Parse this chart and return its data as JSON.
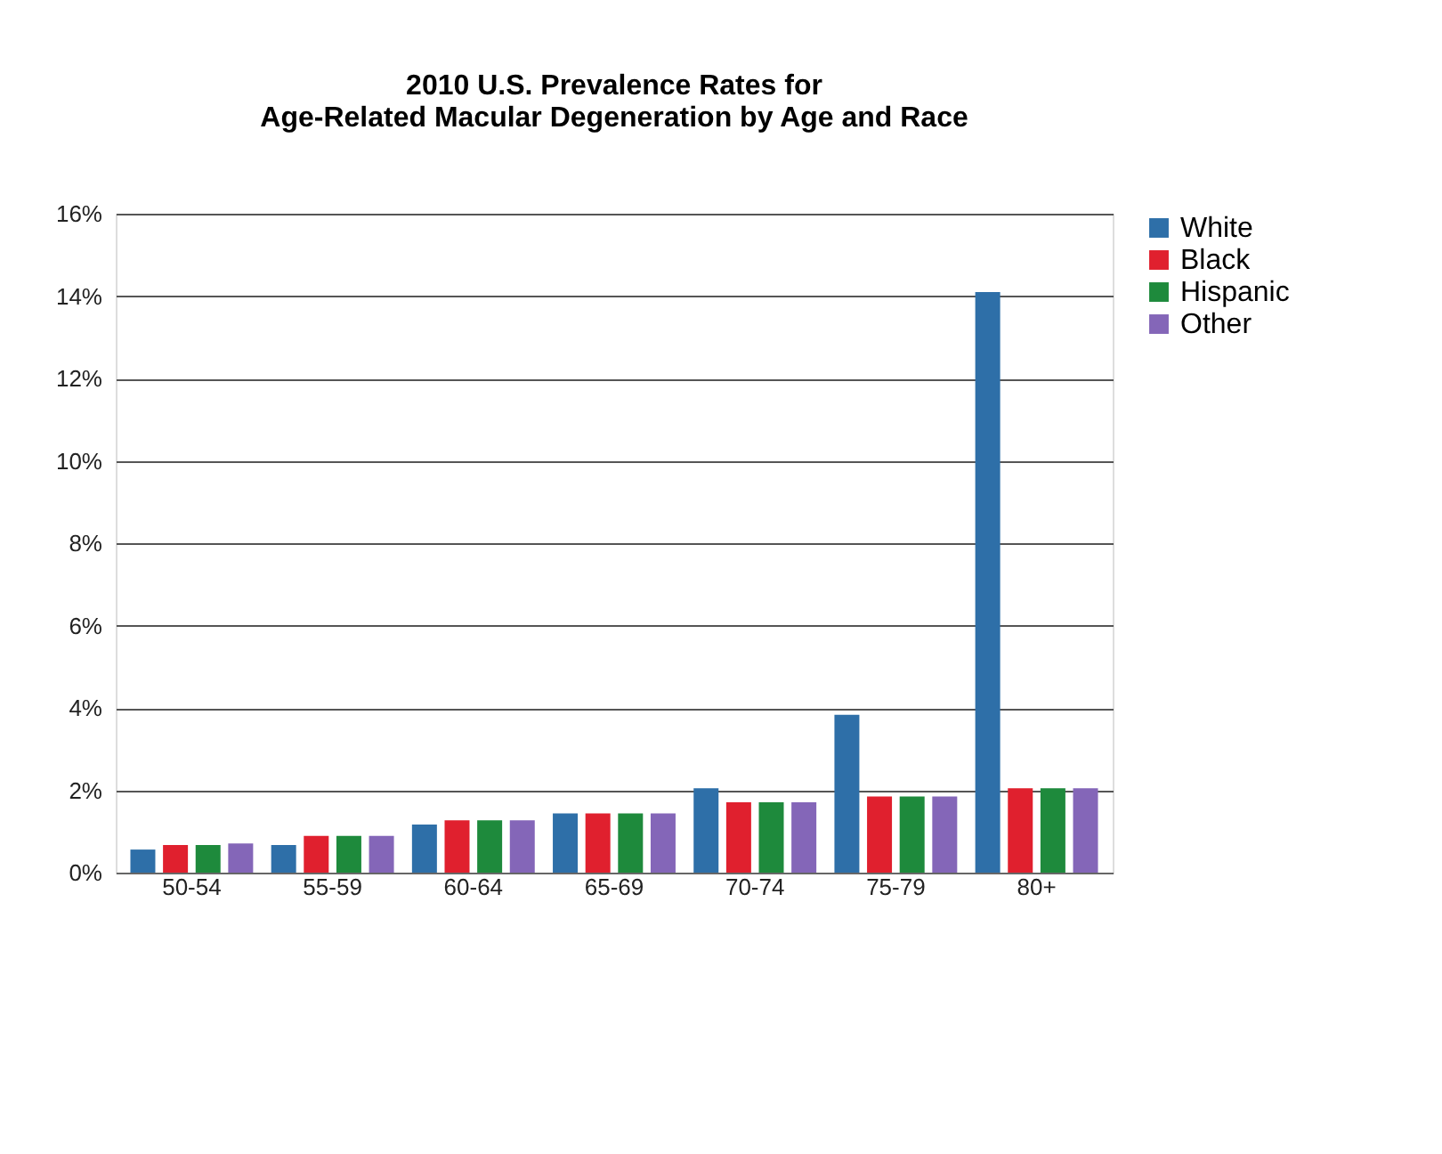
{
  "chart_data": {
    "type": "bar",
    "title": "2010 U.S. Prevalence Rates for\nAge-Related Macular Degeneration by Age and Race",
    "categories": [
      "50-54",
      "55-59",
      "60-64",
      "65-69",
      "70-74",
      "75-79",
      "80+"
    ],
    "series": [
      {
        "name": "White",
        "color": "#2e6fa8",
        "values": [
          0.56,
          0.67,
          1.17,
          1.44,
          2.05,
          3.83,
          14.1
        ]
      },
      {
        "name": "Black",
        "color": "#e0202e",
        "values": [
          0.67,
          0.89,
          1.27,
          1.44,
          1.71,
          1.85,
          2.05
        ]
      },
      {
        "name": "Hispanic",
        "color": "#1e8a3c",
        "values": [
          0.67,
          0.89,
          1.27,
          1.44,
          1.71,
          1.85,
          2.05
        ]
      },
      {
        "name": "Other",
        "color": "#8466b8",
        "values": [
          0.71,
          0.89,
          1.27,
          1.44,
          1.71,
          1.85,
          2.05
        ]
      }
    ],
    "ylim": [
      0,
      16
    ],
    "yticks": [
      {
        "value": 0,
        "label": "0%"
      },
      {
        "value": 2,
        "label": "2%"
      },
      {
        "value": 4,
        "label": "4%"
      },
      {
        "value": 6,
        "label": "6%"
      },
      {
        "value": 8,
        "label": "8%"
      },
      {
        "value": 10,
        "label": "10%"
      },
      {
        "value": 12,
        "label": "12%"
      },
      {
        "value": 14,
        "label": "14%"
      },
      {
        "value": 16,
        "label": "16%"
      }
    ],
    "grid": "y",
    "legend": "right"
  }
}
